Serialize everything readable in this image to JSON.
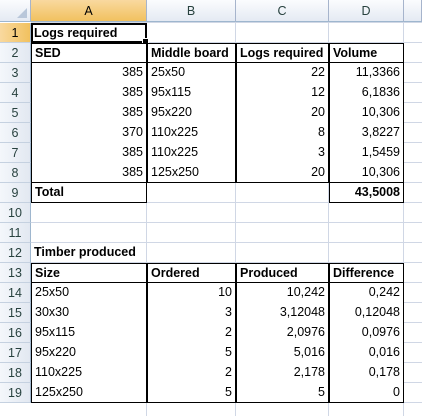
{
  "columns": [
    "A",
    "B",
    "C",
    "D"
  ],
  "rows": [
    "1",
    "2",
    "3",
    "4",
    "5",
    "6",
    "7",
    "8",
    "9",
    "10",
    "11",
    "12",
    "13",
    "14",
    "15",
    "16",
    "17",
    "18",
    "19"
  ],
  "logs": {
    "title": "Logs required",
    "headers": [
      "SED",
      "Middle board",
      "Logs required",
      "Volume"
    ],
    "rows": [
      [
        "385",
        "25x50",
        "22",
        "11,3366"
      ],
      [
        "385",
        "95x115",
        "12",
        "6,1836"
      ],
      [
        "385",
        "95x220",
        "20",
        "10,306"
      ],
      [
        "370",
        "110x225",
        "8",
        "3,8227"
      ],
      [
        "385",
        "110x225",
        "3",
        "1,5459"
      ],
      [
        "385",
        "125x250",
        "20",
        "10,306"
      ]
    ],
    "total_label": "Total",
    "total_value": "43,5008"
  },
  "timber": {
    "title": "Timber produced",
    "headers": [
      "Size",
      "Ordered",
      "Produced",
      "Difference"
    ],
    "rows": [
      [
        "25x50",
        "10",
        "10,242",
        "0,242"
      ],
      [
        "30x30",
        "3",
        "3,12048",
        "0,12048"
      ],
      [
        "95x115",
        "2",
        "2,0976",
        "0,0976"
      ],
      [
        "95x220",
        "5",
        "5,016",
        "0,016"
      ],
      [
        "110x225",
        "2",
        "2,178",
        "0,178"
      ],
      [
        "125x250",
        "5",
        "5",
        "0"
      ]
    ]
  }
}
